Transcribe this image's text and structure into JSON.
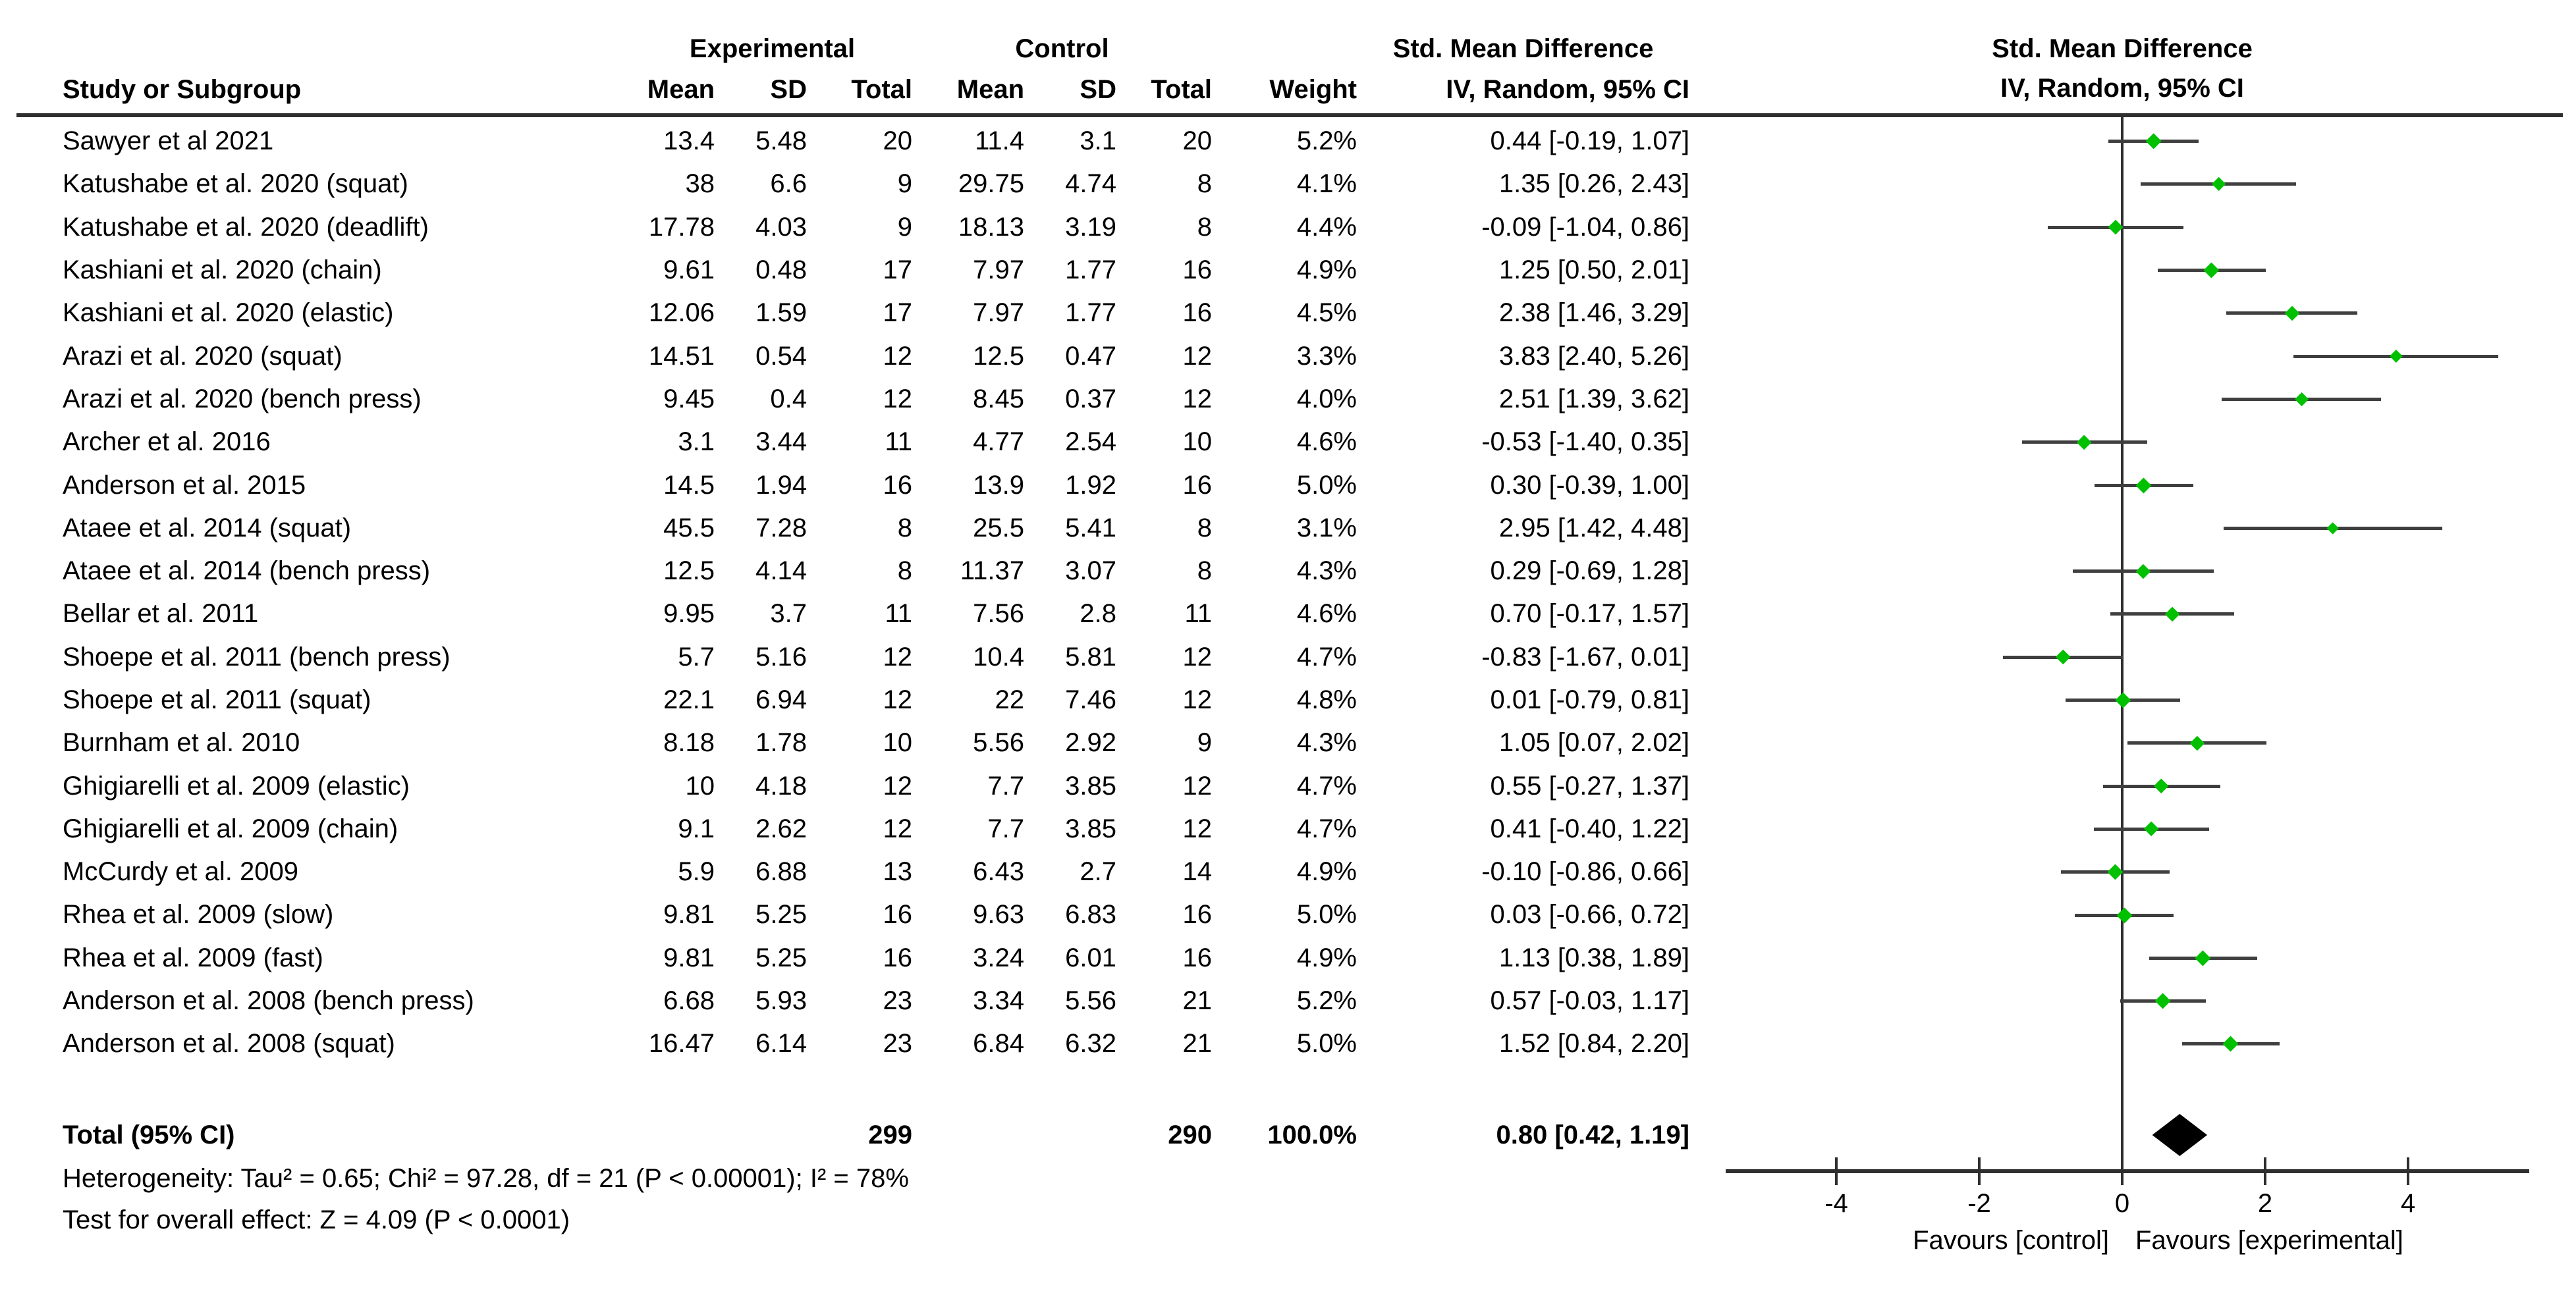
{
  "chart_data": {
    "type": "forest",
    "group_headers": [
      "Experimental",
      "Control",
      "Std. Mean Difference"
    ],
    "col_labels": [
      "Study or Subgroup",
      "Mean",
      "SD",
      "Total",
      "Mean",
      "SD",
      "Total",
      "Weight",
      "IV, Random, 95% CI"
    ],
    "plot_header": [
      "Std. Mean Difference",
      "IV, Random, 95% CI"
    ],
    "studies": [
      {
        "study": "Sawyer et al 2021",
        "exp_mean": "13.4",
        "exp_sd": "5.48",
        "exp_total": "20",
        "ctrl_mean": "11.4",
        "ctrl_sd": "3.1",
        "ctrl_total": "20",
        "weight": "5.2%",
        "weight_val": 5.2,
        "smd": 0.44,
        "ci_low": -0.19,
        "ci_high": 1.07,
        "ci_text": "0.44 [-0.19, 1.07]"
      },
      {
        "study": "Katushabe et al. 2020 (squat)",
        "exp_mean": "38",
        "exp_sd": "6.6",
        "exp_total": "9",
        "ctrl_mean": "29.75",
        "ctrl_sd": "4.74",
        "ctrl_total": "8",
        "weight": "4.1%",
        "weight_val": 4.1,
        "smd": 1.35,
        "ci_low": 0.26,
        "ci_high": 2.43,
        "ci_text": "1.35 [0.26, 2.43]"
      },
      {
        "study": "Katushabe et al. 2020 (deadlift)",
        "exp_mean": "17.78",
        "exp_sd": "4.03",
        "exp_total": "9",
        "ctrl_mean": "18.13",
        "ctrl_sd": "3.19",
        "ctrl_total": "8",
        "weight": "4.4%",
        "weight_val": 4.4,
        "smd": -0.09,
        "ci_low": -1.04,
        "ci_high": 0.86,
        "ci_text": "-0.09 [-1.04, 0.86]"
      },
      {
        "study": "Kashiani et al. 2020 (chain)",
        "exp_mean": "9.61",
        "exp_sd": "0.48",
        "exp_total": "17",
        "ctrl_mean": "7.97",
        "ctrl_sd": "1.77",
        "ctrl_total": "16",
        "weight": "4.9%",
        "weight_val": 4.9,
        "smd": 1.25,
        "ci_low": 0.5,
        "ci_high": 2.01,
        "ci_text": "1.25 [0.50, 2.01]"
      },
      {
        "study": "Kashiani et al. 2020 (elastic)",
        "exp_mean": "12.06",
        "exp_sd": "1.59",
        "exp_total": "17",
        "ctrl_mean": "7.97",
        "ctrl_sd": "1.77",
        "ctrl_total": "16",
        "weight": "4.5%",
        "weight_val": 4.5,
        "smd": 2.38,
        "ci_low": 1.46,
        "ci_high": 3.29,
        "ci_text": "2.38 [1.46, 3.29]"
      },
      {
        "study": "Arazi et al. 2020 (squat)",
        "exp_mean": "14.51",
        "exp_sd": "0.54",
        "exp_total": "12",
        "ctrl_mean": "12.5",
        "ctrl_sd": "0.47",
        "ctrl_total": "12",
        "weight": "3.3%",
        "weight_val": 3.3,
        "smd": 3.83,
        "ci_low": 2.4,
        "ci_high": 5.26,
        "ci_text": "3.83 [2.40, 5.26]"
      },
      {
        "study": "Arazi et al. 2020 (bench press)",
        "exp_mean": "9.45",
        "exp_sd": "0.4",
        "exp_total": "12",
        "ctrl_mean": "8.45",
        "ctrl_sd": "0.37",
        "ctrl_total": "12",
        "weight": "4.0%",
        "weight_val": 4.0,
        "smd": 2.51,
        "ci_low": 1.39,
        "ci_high": 3.62,
        "ci_text": "2.51 [1.39, 3.62]"
      },
      {
        "study": "Archer et al. 2016",
        "exp_mean": "3.1",
        "exp_sd": "3.44",
        "exp_total": "11",
        "ctrl_mean": "4.77",
        "ctrl_sd": "2.54",
        "ctrl_total": "10",
        "weight": "4.6%",
        "weight_val": 4.6,
        "smd": -0.53,
        "ci_low": -1.4,
        "ci_high": 0.35,
        "ci_text": "-0.53 [-1.40, 0.35]"
      },
      {
        "study": "Anderson et al. 2015",
        "exp_mean": "14.5",
        "exp_sd": "1.94",
        "exp_total": "16",
        "ctrl_mean": "13.9",
        "ctrl_sd": "1.92",
        "ctrl_total": "16",
        "weight": "5.0%",
        "weight_val": 5.0,
        "smd": 0.3,
        "ci_low": -0.39,
        "ci_high": 1.0,
        "ci_text": "0.30 [-0.39, 1.00]"
      },
      {
        "study": "Ataee et al. 2014 (squat)",
        "exp_mean": "45.5",
        "exp_sd": "7.28",
        "exp_total": "8",
        "ctrl_mean": "25.5",
        "ctrl_sd": "5.41",
        "ctrl_total": "8",
        "weight": "3.1%",
        "weight_val": 3.1,
        "smd": 2.95,
        "ci_low": 1.42,
        "ci_high": 4.48,
        "ci_text": "2.95 [1.42, 4.48]"
      },
      {
        "study": "Ataee et al. 2014 (bench press)",
        "exp_mean": "12.5",
        "exp_sd": "4.14",
        "exp_total": "8",
        "ctrl_mean": "11.37",
        "ctrl_sd": "3.07",
        "ctrl_total": "8",
        "weight": "4.3%",
        "weight_val": 4.3,
        "smd": 0.29,
        "ci_low": -0.69,
        "ci_high": 1.28,
        "ci_text": "0.29 [-0.69, 1.28]"
      },
      {
        "study": "Bellar et al. 2011",
        "exp_mean": "9.95",
        "exp_sd": "3.7",
        "exp_total": "11",
        "ctrl_mean": "7.56",
        "ctrl_sd": "2.8",
        "ctrl_total": "11",
        "weight": "4.6%",
        "weight_val": 4.6,
        "smd": 0.7,
        "ci_low": -0.17,
        "ci_high": 1.57,
        "ci_text": "0.70 [-0.17, 1.57]"
      },
      {
        "study": "Shoepe et al. 2011 (bench press)",
        "exp_mean": "5.7",
        "exp_sd": "5.16",
        "exp_total": "12",
        "ctrl_mean": "10.4",
        "ctrl_sd": "5.81",
        "ctrl_total": "12",
        "weight": "4.7%",
        "weight_val": 4.7,
        "smd": -0.83,
        "ci_low": -1.67,
        "ci_high": 0.01,
        "ci_text": "-0.83 [-1.67, 0.01]"
      },
      {
        "study": "Shoepe et al. 2011 (squat)",
        "exp_mean": "22.1",
        "exp_sd": "6.94",
        "exp_total": "12",
        "ctrl_mean": "22",
        "ctrl_sd": "7.46",
        "ctrl_total": "12",
        "weight": "4.8%",
        "weight_val": 4.8,
        "smd": 0.01,
        "ci_low": -0.79,
        "ci_high": 0.81,
        "ci_text": "0.01 [-0.79, 0.81]"
      },
      {
        "study": "Burnham et al. 2010",
        "exp_mean": "8.18",
        "exp_sd": "1.78",
        "exp_total": "10",
        "ctrl_mean": "5.56",
        "ctrl_sd": "2.92",
        "ctrl_total": "9",
        "weight": "4.3%",
        "weight_val": 4.3,
        "smd": 1.05,
        "ci_low": 0.07,
        "ci_high": 2.02,
        "ci_text": "1.05 [0.07, 2.02]"
      },
      {
        "study": "Ghigiarelli et al. 2009 (elastic)",
        "exp_mean": "10",
        "exp_sd": "4.18",
        "exp_total": "12",
        "ctrl_mean": "7.7",
        "ctrl_sd": "3.85",
        "ctrl_total": "12",
        "weight": "4.7%",
        "weight_val": 4.7,
        "smd": 0.55,
        "ci_low": -0.27,
        "ci_high": 1.37,
        "ci_text": "0.55 [-0.27, 1.37]"
      },
      {
        "study": "Ghigiarelli et al. 2009 (chain)",
        "exp_mean": "9.1",
        "exp_sd": "2.62",
        "exp_total": "12",
        "ctrl_mean": "7.7",
        "ctrl_sd": "3.85",
        "ctrl_total": "12",
        "weight": "4.7%",
        "weight_val": 4.7,
        "smd": 0.41,
        "ci_low": -0.4,
        "ci_high": 1.22,
        "ci_text": "0.41 [-0.40, 1.22]"
      },
      {
        "study": "McCurdy et al. 2009",
        "exp_mean": "5.9",
        "exp_sd": "6.88",
        "exp_total": "13",
        "ctrl_mean": "6.43",
        "ctrl_sd": "2.7",
        "ctrl_total": "14",
        "weight": "4.9%",
        "weight_val": 4.9,
        "smd": -0.1,
        "ci_low": -0.86,
        "ci_high": 0.66,
        "ci_text": "-0.10 [-0.86, 0.66]"
      },
      {
        "study": "Rhea et al. 2009 (slow)",
        "exp_mean": "9.81",
        "exp_sd": "5.25",
        "exp_total": "16",
        "ctrl_mean": "9.63",
        "ctrl_sd": "6.83",
        "ctrl_total": "16",
        "weight": "5.0%",
        "weight_val": 5.0,
        "smd": 0.03,
        "ci_low": -0.66,
        "ci_high": 0.72,
        "ci_text": "0.03 [-0.66, 0.72]"
      },
      {
        "study": "Rhea et al. 2009 (fast)",
        "exp_mean": "9.81",
        "exp_sd": "5.25",
        "exp_total": "16",
        "ctrl_mean": "3.24",
        "ctrl_sd": "6.01",
        "ctrl_total": "16",
        "weight": "4.9%",
        "weight_val": 4.9,
        "smd": 1.13,
        "ci_low": 0.38,
        "ci_high": 1.89,
        "ci_text": "1.13 [0.38, 1.89]"
      },
      {
        "study": "Anderson et al. 2008 (bench press)",
        "exp_mean": "6.68",
        "exp_sd": "5.93",
        "exp_total": "23",
        "ctrl_mean": "3.34",
        "ctrl_sd": "5.56",
        "ctrl_total": "21",
        "weight": "5.2%",
        "weight_val": 5.2,
        "smd": 0.57,
        "ci_low": -0.03,
        "ci_high": 1.17,
        "ci_text": "0.57 [-0.03, 1.17]"
      },
      {
        "study": "Anderson et al. 2008 (squat)",
        "exp_mean": "16.47",
        "exp_sd": "6.14",
        "exp_total": "23",
        "ctrl_mean": "6.84",
        "ctrl_sd": "6.32",
        "ctrl_total": "21",
        "weight": "5.0%",
        "weight_val": 5.0,
        "smd": 1.52,
        "ci_low": 0.84,
        "ci_high": 2.2,
        "ci_text": "1.52 [0.84, 2.20]"
      }
    ],
    "total": {
      "label": "Total (95% CI)",
      "exp_total": "299",
      "ctrl_total": "290",
      "weight": "100.0%",
      "smd": 0.8,
      "ci_low": 0.42,
      "ci_high": 1.19,
      "ci_text": "0.80 [0.42, 1.19]"
    },
    "heterogeneity": "Heterogeneity: Tau² = 0.65; Chi² = 97.28, df = 21 (P < 0.00001); I² = 78%",
    "overall_effect": "Test for overall effect: Z = 4.09 (P < 0.0001)",
    "axis": {
      "ticks": [
        -4,
        -2,
        0,
        2,
        4
      ],
      "tick_labels": [
        "-4",
        "-2",
        "0",
        "2",
        "4"
      ],
      "xlim": [
        -5.5,
        5.7
      ],
      "favours_left": "Favours [control]",
      "favours_right": "Favours [experimental]"
    },
    "colors": {
      "marker_green": "#00C000",
      "line_gray": "#3f3f3f",
      "diamond_black": "#000000"
    }
  }
}
